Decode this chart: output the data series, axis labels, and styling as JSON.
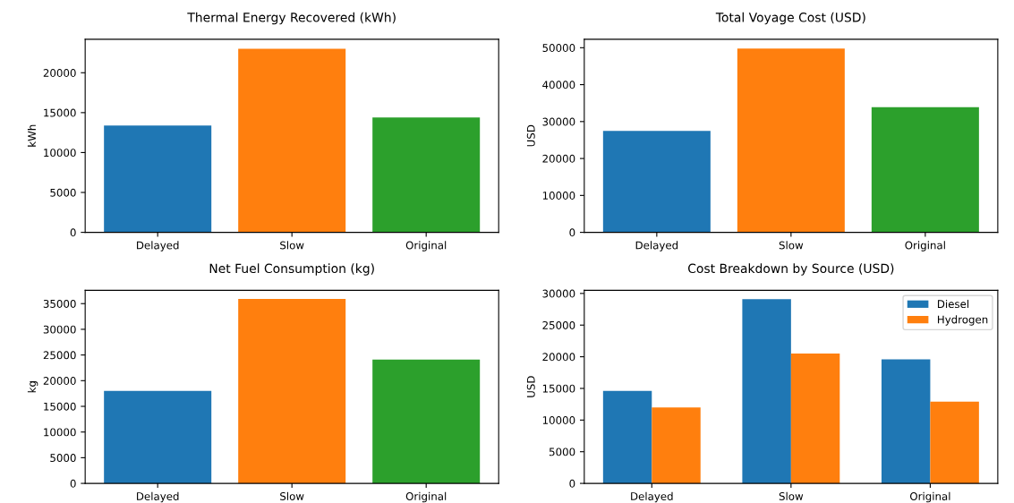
{
  "chart_data": [
    {
      "type": "bar",
      "title": "Thermal Energy Recovered (kWh)",
      "ylabel": "kWh",
      "categories": [
        "Delayed",
        "Slow",
        "Original"
      ],
      "values": [
        13400,
        23000,
        14400
      ],
      "colors": [
        "#1f77b4",
        "#ff7f0e",
        "#2ca02c"
      ],
      "ylim": [
        0,
        24200
      ],
      "yticks": [
        0,
        5000,
        10000,
        15000,
        20000
      ],
      "grid": false,
      "legend": false
    },
    {
      "type": "bar",
      "title": "Total Voyage Cost (USD)",
      "ylabel": "USD",
      "categories": [
        "Delayed",
        "Slow",
        "Original"
      ],
      "values": [
        27500,
        49800,
        33900
      ],
      "colors": [
        "#1f77b4",
        "#ff7f0e",
        "#2ca02c"
      ],
      "ylim": [
        0,
        52300
      ],
      "yticks": [
        0,
        10000,
        20000,
        30000,
        40000,
        50000
      ],
      "grid": false,
      "legend": false
    },
    {
      "type": "bar",
      "title": "Net Fuel Consumption (kg)",
      "ylabel": "kg",
      "categories": [
        "Delayed",
        "Slow",
        "Original"
      ],
      "values": [
        18000,
        35900,
        24100
      ],
      "colors": [
        "#1f77b4",
        "#ff7f0e",
        "#2ca02c"
      ],
      "ylim": [
        0,
        37600
      ],
      "yticks": [
        0,
        5000,
        10000,
        15000,
        20000,
        25000,
        30000,
        35000
      ],
      "grid": false,
      "legend": false
    },
    {
      "type": "bar",
      "title": "Cost Breakdown by Source (USD)",
      "ylabel": "USD",
      "categories": [
        "Delayed",
        "Slow",
        "Original"
      ],
      "series": [
        {
          "name": "Diesel",
          "color": "#1f77b4",
          "values": [
            14600,
            29100,
            19600
          ]
        },
        {
          "name": "Hydrogen",
          "color": "#ff7f0e",
          "values": [
            12000,
            20500,
            12900
          ]
        }
      ],
      "ylim": [
        0,
        30500
      ],
      "yticks": [
        0,
        5000,
        10000,
        15000,
        20000,
        25000,
        30000
      ],
      "grid": false,
      "legend": "top right"
    }
  ]
}
